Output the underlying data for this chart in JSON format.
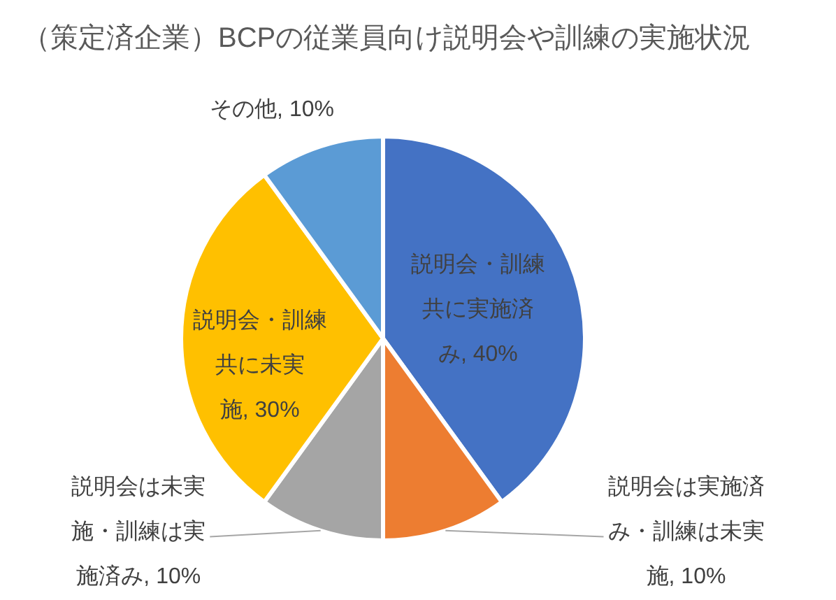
{
  "chart_data": {
    "type": "pie",
    "title": "（策定済企業）BCPの従業員向け説明会や訓練の実施状況",
    "categories": [
      "説明会・訓練共に実施済み",
      "説明会は実施済み・訓練は未実施",
      "説明会は未実施・訓練は実施済み",
      "説明会・訓練共に未実施",
      "その他"
    ],
    "values": [
      40,
      10,
      10,
      30,
      10
    ],
    "colors": [
      "#4472c4",
      "#ed7d31",
      "#a5a5a5",
      "#ffc000",
      "#5b9bd5"
    ],
    "value_labels": [
      "40%",
      "10%",
      "10%",
      "30%",
      "10%"
    ],
    "legend": false
  }
}
